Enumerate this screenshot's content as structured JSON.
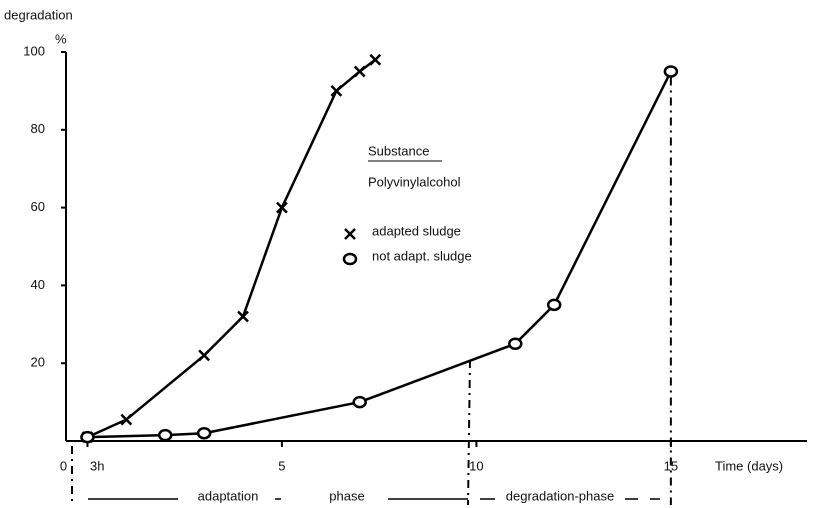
{
  "chart_data": {
    "type": "line",
    "y_label": "degradation",
    "y_unit": "%",
    "x_label": "Time (days)",
    "substance_heading": "Substance",
    "substance": "Polyvinylalcohol",
    "start_note": "3h",
    "phase_labels": [
      "adaptation",
      "phase",
      "degradation-phase"
    ],
    "xlim": [
      -0.5,
      18.5
    ],
    "xticks": [
      0,
      5,
      10,
      15
    ],
    "ylim": [
      0,
      100
    ],
    "yticks": [
      20,
      40,
      60,
      80,
      100
    ],
    "series": [
      {
        "name": "adapted sludge",
        "color": "#000000",
        "marker": "x",
        "x": [
          0,
          1,
          3,
          4,
          5,
          6.4,
          7,
          7.4
        ],
        "values": [
          1,
          5.5,
          22,
          32,
          60,
          90,
          95,
          98
        ]
      },
      {
        "name": "not adapt. sludge",
        "color": "#000000",
        "marker": "o",
        "x": [
          0,
          2,
          3,
          7,
          11,
          12,
          15
        ],
        "values": [
          1,
          1.5,
          2,
          10,
          25,
          35,
          95
        ]
      }
    ]
  }
}
